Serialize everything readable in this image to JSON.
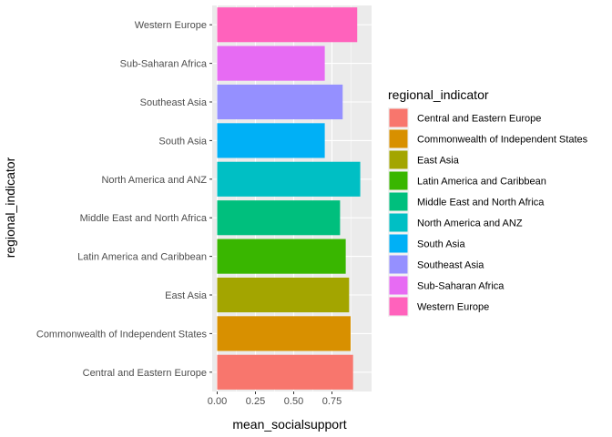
{
  "chart_data": {
    "type": "bar",
    "orientation": "horizontal",
    "xlabel": "mean_socialsupport",
    "ylabel": "regional_indicator",
    "xlim": [
      0,
      0.95
    ],
    "x_ticks": [
      "0.00",
      "0.25",
      "0.50",
      "0.75"
    ],
    "x_tick_values": [
      0,
      0.25,
      0.5,
      0.75
    ],
    "grid": true,
    "legend_title": "regional_indicator",
    "legend_position": "right",
    "categories": [
      "Central and Eastern Europe",
      "Commonwealth of Independent States",
      "East Asia",
      "Latin America and Caribbean",
      "Middle East and North Africa",
      "North America and ANZ",
      "South Asia",
      "Southeast Asia",
      "Sub-Saharan Africa",
      "Western Europe"
    ],
    "values": [
      0.888,
      0.872,
      0.862,
      0.84,
      0.803,
      0.935,
      0.703,
      0.82,
      0.703,
      0.915
    ],
    "colors": [
      "#F8766D",
      "#D89000",
      "#A3A500",
      "#39B600",
      "#00BF7D",
      "#00BFC4",
      "#00B0F6",
      "#9590FF",
      "#E76BF3",
      "#FF62BC"
    ]
  }
}
